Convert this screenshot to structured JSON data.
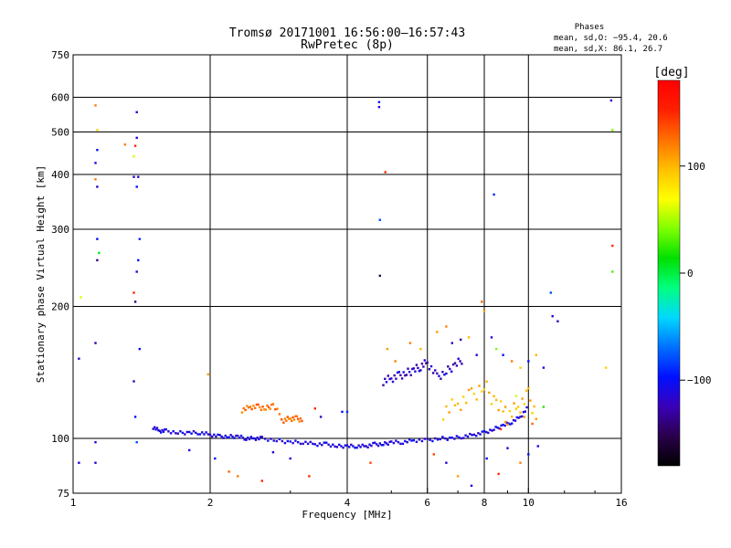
{
  "chart_data": {
    "type": "scatter",
    "title_line1": "Tromsø 20171001 16:56:00–16:57:43",
    "title_line2": "RwPretec (8p)",
    "xlabel": "Frequency [MHz]",
    "ylabel": "Stationary phase Virtual Height [km]",
    "x_scale": "log",
    "y_scale": "log",
    "xlim": [
      1,
      16
    ],
    "ylim": [
      75,
      750
    ],
    "x_ticks": [
      1,
      2,
      4,
      6,
      8,
      10,
      16
    ],
    "y_ticks": [
      75,
      100,
      200,
      300,
      400,
      500,
      600,
      750
    ],
    "x_grid": [
      2,
      4,
      6,
      8,
      10
    ],
    "y_grid": [
      100,
      200,
      300,
      400,
      500,
      600
    ],
    "grid": true,
    "phase_stats": {
      "heading": "Phases",
      "line_o": "mean, sd,O: −95.4, 20.6",
      "line_x": "mean, sd,X:  86.1, 26.7"
    },
    "colorbar": {
      "unit": "[deg]",
      "ticks": [
        100,
        0,
        -100
      ],
      "range": [
        -180,
        180
      ],
      "colors": [
        "#000000",
        "#2a004a",
        "#3a00b8",
        "#0010ff",
        "#0070ff",
        "#00d8ff",
        "#00ff80",
        "#00e000",
        "#80ff00",
        "#ffff00",
        "#ffc000",
        "#ff7000",
        "#ff2000",
        "#ff0000"
      ]
    },
    "trace_blue": {
      "freq": [
        1.5,
        1.55,
        1.6,
        1.7,
        1.8,
        1.9,
        2.0,
        2.1,
        2.2,
        2.3,
        2.4,
        2.5,
        2.6,
        2.8,
        3.0,
        3.2,
        3.4,
        3.6,
        3.8,
        4.0,
        4.2,
        4.4,
        4.6,
        4.8,
        5.0,
        5.3,
        5.6,
        6.0,
        6.4,
        6.8,
        7.2,
        7.6,
        8.0,
        8.4,
        8.8,
        9.2,
        9.6,
        10.0
      ],
      "height": [
        106,
        104,
        104,
        103,
        103,
        103,
        102,
        101,
        101,
        101,
        100,
        100,
        100,
        99,
        98,
        98,
        97,
        97,
        96,
        96,
        96,
        96,
        97,
        97,
        98,
        98,
        99,
        99,
        100,
        100,
        101,
        102,
        103,
        105,
        107,
        109,
        112,
        118
      ],
      "phase": -110
    },
    "trace_upper_x": {
      "freq": [
        2.35,
        2.45,
        2.55,
        2.65,
        2.75,
        2.9,
        3.0,
        3.1,
        3.2
      ],
      "height": [
        116,
        118,
        118,
        117,
        119,
        110,
        111,
        111,
        110
      ],
      "phase": 125
    },
    "trace_f2": {
      "freq": [
        4.8,
        5.0,
        5.2,
        5.4,
        5.6,
        5.8,
        6.0,
        6.3,
        6.6,
        6.9,
        7.2
      ],
      "height": [
        135,
        137,
        139,
        141,
        143,
        146,
        149,
        138,
        142,
        147,
        152
      ],
      "phase": -120
    },
    "trace_f2_x": {
      "freq": [
        6.5,
        7.0,
        7.5,
        8.0,
        8.5,
        9.0,
        9.5,
        10.0,
        10.5
      ],
      "height": [
        115,
        120,
        125,
        132,
        120,
        112,
        118,
        125,
        110
      ],
      "phase": 100
    },
    "scattered_points": [
      {
        "f": 1.12,
        "h": 575,
        "p": 120
      },
      {
        "f": 1.13,
        "h": 505,
        "p": 90
      },
      {
        "f": 1.13,
        "h": 455,
        "p": -100
      },
      {
        "f": 1.12,
        "h": 425,
        "p": -110
      },
      {
        "f": 1.12,
        "h": 390,
        "p": 120
      },
      {
        "f": 1.13,
        "h": 375,
        "p": -120
      },
      {
        "f": 1.13,
        "h": 285,
        "p": -100
      },
      {
        "f": 1.14,
        "h": 265,
        "p": 10
      },
      {
        "f": 1.13,
        "h": 255,
        "p": -140
      },
      {
        "f": 1.12,
        "h": 165,
        "p": -130
      },
      {
        "f": 1.04,
        "h": 210,
        "p": 60
      },
      {
        "f": 1.03,
        "h": 152,
        "p": -120
      },
      {
        "f": 1.12,
        "h": 98,
        "p": -110
      },
      {
        "f": 1.12,
        "h": 88,
        "p": -110
      },
      {
        "f": 1.03,
        "h": 88,
        "p": -110
      },
      {
        "f": 1.38,
        "h": 555,
        "p": -110
      },
      {
        "f": 1.38,
        "h": 485,
        "p": -110
      },
      {
        "f": 1.37,
        "h": 465,
        "p": 150
      },
      {
        "f": 1.36,
        "h": 440,
        "p": 60
      },
      {
        "f": 1.36,
        "h": 395,
        "p": -120
      },
      {
        "f": 1.38,
        "h": 375,
        "p": -100
      },
      {
        "f": 1.39,
        "h": 395,
        "p": -110
      },
      {
        "f": 1.4,
        "h": 285,
        "p": -90
      },
      {
        "f": 1.39,
        "h": 255,
        "p": -100
      },
      {
        "f": 1.38,
        "h": 240,
        "p": -120
      },
      {
        "f": 1.36,
        "h": 215,
        "p": 150
      },
      {
        "f": 1.37,
        "h": 205,
        "p": -140
      },
      {
        "f": 1.4,
        "h": 160,
        "p": -100
      },
      {
        "f": 1.36,
        "h": 135,
        "p": -120
      },
      {
        "f": 1.37,
        "h": 112,
        "p": -100
      },
      {
        "f": 1.38,
        "h": 98,
        "p": -80
      },
      {
        "f": 1.3,
        "h": 468,
        "p": 120
      },
      {
        "f": 1.8,
        "h": 94,
        "p": -110
      },
      {
        "f": 1.98,
        "h": 140,
        "p": 110
      },
      {
        "f": 2.05,
        "h": 90,
        "p": -100
      },
      {
        "f": 2.2,
        "h": 84,
        "p": 130
      },
      {
        "f": 2.3,
        "h": 82,
        "p": 120
      },
      {
        "f": 2.6,
        "h": 80,
        "p": 150
      },
      {
        "f": 2.75,
        "h": 93,
        "p": -110
      },
      {
        "f": 3.0,
        "h": 90,
        "p": -110
      },
      {
        "f": 3.3,
        "h": 82,
        "p": 150
      },
      {
        "f": 3.4,
        "h": 117,
        "p": 150
      },
      {
        "f": 3.5,
        "h": 112,
        "p": -120
      },
      {
        "f": 3.9,
        "h": 115,
        "p": -100
      },
      {
        "f": 4.0,
        "h": 115,
        "p": -90
      },
      {
        "f": 4.5,
        "h": 88,
        "p": 140
      },
      {
        "f": 4.7,
        "h": 585,
        "p": -100
      },
      {
        "f": 4.7,
        "h": 570,
        "p": -110
      },
      {
        "f": 4.85,
        "h": 405,
        "p": 150
      },
      {
        "f": 4.72,
        "h": 315,
        "p": -80
      },
      {
        "f": 4.72,
        "h": 235,
        "p": -150
      },
      {
        "f": 4.9,
        "h": 160,
        "p": 110
      },
      {
        "f": 5.1,
        "h": 150,
        "p": 120
      },
      {
        "f": 5.5,
        "h": 165,
        "p": 120
      },
      {
        "f": 5.8,
        "h": 160,
        "p": 100
      },
      {
        "f": 6.3,
        "h": 175,
        "p": 110
      },
      {
        "f": 6.6,
        "h": 180,
        "p": 120
      },
      {
        "f": 6.8,
        "h": 165,
        "p": -120
      },
      {
        "f": 7.1,
        "h": 168,
        "p": -130
      },
      {
        "f": 7.4,
        "h": 170,
        "p": 100
      },
      {
        "f": 7.7,
        "h": 155,
        "p": -110
      },
      {
        "f": 7.9,
        "h": 205,
        "p": 130
      },
      {
        "f": 8.0,
        "h": 195,
        "p": 110
      },
      {
        "f": 8.3,
        "h": 170,
        "p": -110
      },
      {
        "f": 8.5,
        "h": 160,
        "p": 40
      },
      {
        "f": 8.8,
        "h": 155,
        "p": -100
      },
      {
        "f": 9.2,
        "h": 150,
        "p": 120
      },
      {
        "f": 9.6,
        "h": 145,
        "p": 90
      },
      {
        "f": 10.0,
        "h": 150,
        "p": -100
      },
      {
        "f": 10.4,
        "h": 155,
        "p": 100
      },
      {
        "f": 10.8,
        "h": 145,
        "p": -110
      },
      {
        "f": 11.3,
        "h": 190,
        "p": -110
      },
      {
        "f": 11.6,
        "h": 185,
        "p": -120
      },
      {
        "f": 11.2,
        "h": 215,
        "p": -80
      },
      {
        "f": 8.4,
        "h": 360,
        "p": -90
      },
      {
        "f": 6.2,
        "h": 92,
        "p": 140
      },
      {
        "f": 6.6,
        "h": 88,
        "p": -110
      },
      {
        "f": 7.0,
        "h": 82,
        "p": 110
      },
      {
        "f": 7.5,
        "h": 78,
        "p": -110
      },
      {
        "f": 8.1,
        "h": 90,
        "p": -100
      },
      {
        "f": 8.6,
        "h": 83,
        "p": 150
      },
      {
        "f": 9.0,
        "h": 95,
        "p": -110
      },
      {
        "f": 9.6,
        "h": 88,
        "p": 120
      },
      {
        "f": 10.0,
        "h": 92,
        "p": -100
      },
      {
        "f": 10.5,
        "h": 96,
        "p": -110
      },
      {
        "f": 10.8,
        "h": 118,
        "p": 20
      },
      {
        "f": 9.4,
        "h": 125,
        "p": 60
      },
      {
        "f": 9.8,
        "h": 112,
        "p": 110
      },
      {
        "f": 10.2,
        "h": 108,
        "p": 130
      },
      {
        "f": 8.9,
        "h": 118,
        "p": 110
      },
      {
        "f": 8.7,
        "h": 105,
        "p": 140
      },
      {
        "f": 15.2,
        "h": 590,
        "p": -110
      },
      {
        "f": 15.3,
        "h": 505,
        "p": 40
      },
      {
        "f": 15.3,
        "h": 275,
        "p": 150
      },
      {
        "f": 15.3,
        "h": 240,
        "p": 30
      },
      {
        "f": 14.8,
        "h": 145,
        "p": 90
      }
    ]
  }
}
